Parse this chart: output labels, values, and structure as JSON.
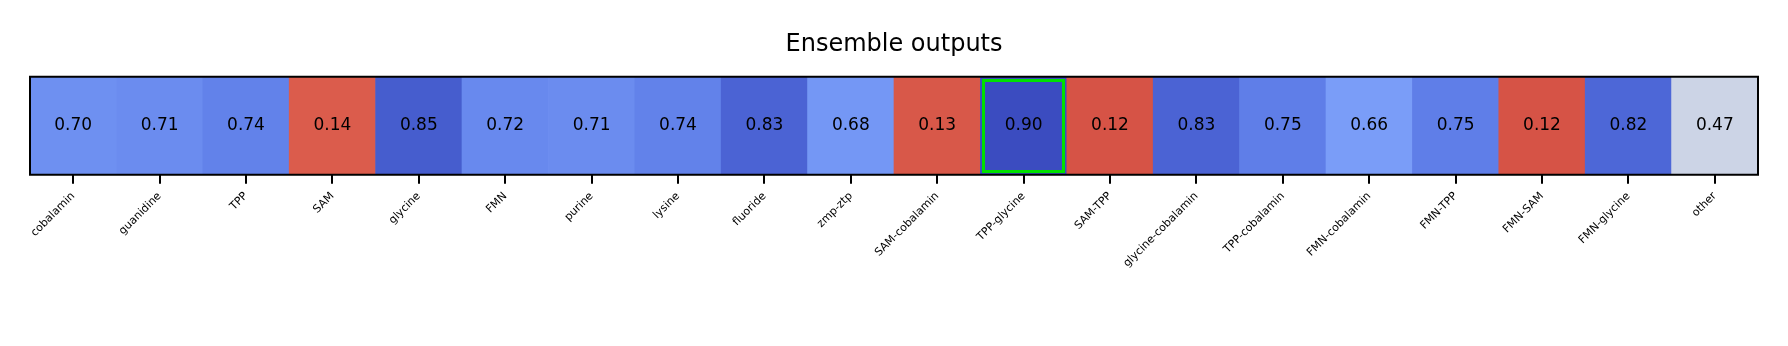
{
  "chart_data": {
    "type": "heatmap",
    "title": "Ensemble outputs",
    "categories": [
      "cobalamin",
      "guanidine",
      "TPP",
      "SAM",
      "glycine",
      "FMN",
      "purine",
      "lysine",
      "fluoride",
      "zmp-ztp",
      "SAM-cobalamin",
      "TPP-glycine",
      "SAM-TPP",
      "glycine-cobalamin",
      "TPP-cobalamin",
      "FMN-cobalamin",
      "FMN-TPP",
      "FMN-SAM",
      "FMN-glycine",
      "other"
    ],
    "y_categories": [
      null
    ],
    "cells": [
      [
        0.7,
        0.71,
        0.74,
        0.14,
        0.85,
        0.72,
        0.71,
        0.74,
        0.83,
        0.68,
        0.13,
        0.9,
        0.12,
        0.83,
        0.75,
        0.66,
        0.75,
        0.12,
        0.82,
        0.47
      ]
    ],
    "cell_labels": [
      [
        "0.70",
        "0.71",
        "0.74",
        "0.14",
        "0.85",
        "0.72",
        "0.71",
        "0.74",
        "0.83",
        "0.68",
        "0.13",
        "0.90",
        "0.12",
        "0.83",
        "0.75",
        "0.66",
        "0.75",
        "0.12",
        "0.82",
        "0.47"
      ]
    ],
    "data_labels": true
  }
}
